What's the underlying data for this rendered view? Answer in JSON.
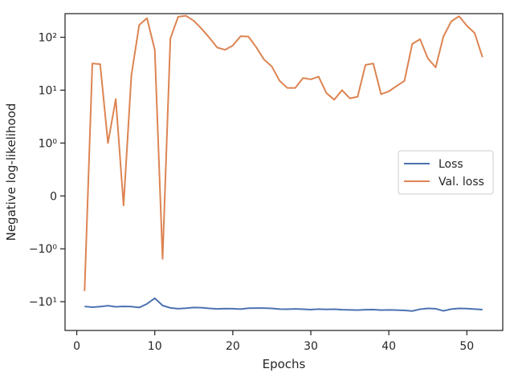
{
  "chart_data": {
    "type": "line",
    "title": "",
    "xlabel": "Epochs",
    "ylabel": "Negative log-likelihood",
    "xlim": [
      -1.5,
      54.6
    ],
    "x_ticks": [
      0,
      10,
      20,
      30,
      40,
      50
    ],
    "x_tick_labels": [
      "0",
      "10",
      "20",
      "30",
      "40",
      "50"
    ],
    "y_scale": "symlog",
    "y_scale_linthresh": 1,
    "ylim": [
      -35,
      280
    ],
    "y_ticks": [
      -10,
      -1,
      0,
      1,
      10,
      100
    ],
    "y_tick_labels": [
      "−10¹",
      "−10⁰",
      "0",
      "10⁰",
      "10¹",
      "10²"
    ],
    "grid": false,
    "legend": {
      "position": "center-right",
      "entries": [
        "Loss",
        "Val. loss"
      ]
    },
    "colors": {
      "Loss": "#4c72b0",
      "Val. loss": "#dd8452"
    },
    "x": [
      1,
      2,
      3,
      4,
      5,
      6,
      7,
      8,
      9,
      10,
      11,
      12,
      13,
      14,
      15,
      16,
      17,
      18,
      19,
      20,
      21,
      22,
      23,
      24,
      25,
      26,
      27,
      28,
      29,
      30,
      31,
      32,
      33,
      34,
      35,
      36,
      37,
      38,
      39,
      40,
      41,
      42,
      43,
      44,
      45,
      46,
      47,
      48,
      49,
      50,
      51,
      52
    ],
    "series": [
      {
        "name": "Loss",
        "values": [
          -12.3,
          -12.7,
          -12.4,
          -11.9,
          -12.5,
          -12.3,
          -12.4,
          -12.9,
          -11.0,
          -8.6,
          -11.8,
          -13.1,
          -13.6,
          -13.3,
          -12.9,
          -13.0,
          -13.4,
          -13.7,
          -13.5,
          -13.6,
          -13.8,
          -13.3,
          -13.2,
          -13.2,
          -13.4,
          -13.8,
          -13.9,
          -13.7,
          -13.9,
          -14.1,
          -13.8,
          -14.0,
          -13.9,
          -14.2,
          -14.3,
          -14.4,
          -14.2,
          -14.1,
          -14.4,
          -14.3,
          -14.4,
          -14.6,
          -15.0,
          -13.9,
          -13.4,
          -13.6,
          -14.9,
          -13.8,
          -13.4,
          -13.5,
          -13.8,
          -14.1
        ]
      },
      {
        "name": "Val. loss",
        "values": [
          -6.3,
          32,
          31,
          1.0,
          6.8,
          -0.18,
          19,
          170,
          230,
          58,
          -1.55,
          95,
          245,
          255,
          205,
          145,
          98,
          64,
          58,
          70,
          105,
          103,
          65,
          38,
          28,
          15,
          11,
          11,
          17,
          16,
          18,
          8.8,
          6.6,
          10,
          7.0,
          7.5,
          30,
          32,
          8.4,
          9.5,
          12,
          15,
          75,
          92,
          40,
          27,
          104,
          200,
          250,
          165,
          120,
          42
        ]
      }
    ]
  }
}
